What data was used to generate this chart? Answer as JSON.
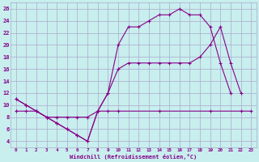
{
  "xlabel": "Windchill (Refroidissement éolien,°C)",
  "xlim": [
    -0.5,
    23.5
  ],
  "ylim": [
    3,
    27
  ],
  "yticks": [
    4,
    6,
    8,
    10,
    12,
    14,
    16,
    18,
    20,
    22,
    24,
    26
  ],
  "xticks": [
    0,
    1,
    2,
    3,
    4,
    5,
    6,
    7,
    8,
    9,
    10,
    11,
    12,
    13,
    14,
    15,
    16,
    17,
    18,
    19,
    20,
    21,
    22,
    23
  ],
  "bg_color": "#c8eeee",
  "grid_color": "#aaaacc",
  "line_color": "#880088",
  "line1_x": [
    0,
    1,
    2,
    3,
    4,
    5,
    6,
    7,
    8,
    9,
    10,
    11,
    12,
    13,
    14,
    15,
    16,
    17,
    18,
    19,
    20,
    21
  ],
  "line1_y": [
    11,
    10,
    9,
    8,
    7,
    6,
    5,
    4,
    9,
    12,
    20,
    23,
    23,
    24,
    25,
    25,
    26,
    25,
    25,
    23,
    17,
    12
  ],
  "line2_x": [
    0,
    1,
    2,
    3,
    4,
    5,
    6,
    7,
    8,
    9,
    10,
    11,
    12,
    13,
    14,
    15,
    16,
    17,
    18,
    19,
    20,
    21,
    22,
    23
  ],
  "line2_y": [
    11,
    10,
    9,
    8,
    7,
    6,
    5,
    4,
    9,
    12,
    16,
    17,
    17,
    17,
    17,
    17,
    17,
    17,
    18,
    20,
    23,
    17,
    12,
    null
  ],
  "line3_x": [
    0,
    1,
    2,
    3,
    4,
    5,
    6,
    7,
    8,
    9,
    10,
    14,
    19,
    22,
    23
  ],
  "line3_y": [
    9,
    9,
    9,
    8,
    8,
    8,
    8,
    8,
    9,
    9,
    9,
    9,
    9,
    9,
    9
  ]
}
